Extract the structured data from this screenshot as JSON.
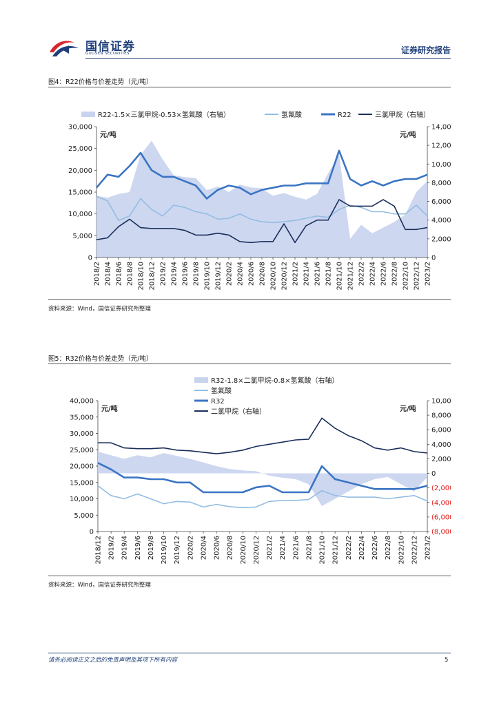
{
  "header": {
    "brand_cn": "国信证券",
    "brand_en": "GUOSEN SECURITIES",
    "report_type": "证券研究报告"
  },
  "figure4": {
    "title": "图4：R22价格与价差走势（元/吨）",
    "source": "资料来源：Wind，国信证券研究所整理"
  },
  "figure5": {
    "title": "图5：R32价格与价差走势（元/吨）",
    "source": "资料来源：Wind，国信证券研究所整理"
  },
  "footer": {
    "disclaimer": "请务必阅读正文之后的免责声明及其项下所有内容",
    "page": "5"
  },
  "colors": {
    "spread_fill": "#c8d3ee",
    "hf": "#93bde2",
    "product": "#3a74c4",
    "chloromethane": "#1a2e5a",
    "brand": "#1f3f7a",
    "logo_red": "#d8262f",
    "negative_red": "#e0201c"
  },
  "chart_data": [
    {
      "type": "line",
      "title": "R22价格与价差走势",
      "unit_left": "元/吨",
      "unit_right": "元/吨",
      "x_labels": [
        "2018/2",
        "2018/4",
        "2018/6",
        "2018/8",
        "2018/10",
        "2018/12",
        "2019/2",
        "2019/4",
        "2019/6",
        "2019/8",
        "2019/10",
        "2019/12",
        "2020/2",
        "2020/4",
        "2020/6",
        "2020/8",
        "2020/10",
        "2020/12",
        "2021/2",
        "2021/4",
        "2021/6",
        "2021/8",
        "2021/10",
        "2021/12",
        "2022/2",
        "2022/4",
        "2022/6",
        "2022/8",
        "2022/10",
        "2022/12",
        "2023/2"
      ],
      "y_left": {
        "min": 0,
        "max": 30000,
        "ticks": [
          "0",
          "5,000",
          "10,000",
          "15,000",
          "20,000",
          "25,000",
          "30,000"
        ]
      },
      "y_right": {
        "min": 0,
        "max": 14000,
        "ticks": [
          "0",
          "2,000",
          "4,000",
          "6,000",
          "8,000",
          "10,000",
          "12,000",
          "14,000"
        ]
      },
      "legend": [
        "R22-1.5×三氯甲烷-0.53×氢氟酸（右轴）",
        "氢氟酸",
        "R22",
        "三氯甲烷（右轴）"
      ],
      "series": [
        {
          "name": "R22-1.5×三氯甲烷-0.53×氢氟酸（右轴）",
          "axis": "right",
          "style": "area",
          "values": [
            6600,
            6400,
            6800,
            7000,
            11000,
            12500,
            10500,
            8800,
            8600,
            8500,
            7200,
            7600,
            7000,
            7800,
            7500,
            7400,
            6600,
            6900,
            6500,
            6200,
            6800,
            9000,
            11000,
            2000,
            3500,
            2600,
            3200,
            3800,
            4600,
            7000,
            8200
          ]
        },
        {
          "name": "氢氟酸",
          "axis": "left",
          "style": "line",
          "values": [
            14000,
            13000,
            8500,
            9500,
            13500,
            11000,
            9500,
            12000,
            11500,
            10500,
            10000,
            8800,
            9000,
            10000,
            8800,
            8200,
            8000,
            8200,
            8500,
            9000,
            9500,
            9200,
            11000,
            12000,
            11500,
            10500,
            10500,
            10000,
            10000,
            12000,
            9500
          ]
        },
        {
          "name": "R22",
          "axis": "left",
          "style": "line",
          "values": [
            16000,
            19000,
            18500,
            21000,
            24000,
            20000,
            18500,
            18500,
            17500,
            16500,
            13500,
            15500,
            16500,
            16000,
            14500,
            15500,
            16000,
            16500,
            16500,
            17000,
            17000,
            17000,
            24500,
            18000,
            16500,
            17500,
            16500,
            17500,
            18000,
            18000,
            19000
          ]
        },
        {
          "name": "三氯甲烷（右轴）",
          "axis": "right",
          "style": "line",
          "values": [
            1900,
            2100,
            3300,
            4100,
            3200,
            3100,
            3100,
            3100,
            2900,
            2400,
            2400,
            2600,
            2400,
            1700,
            1600,
            1700,
            1700,
            3600,
            1600,
            3400,
            4000,
            4000,
            6200,
            5500,
            5500,
            5500,
            6200,
            5500,
            3000,
            3000,
            3200
          ]
        }
      ]
    },
    {
      "type": "line",
      "title": "R32价格与价差走势",
      "unit_left": "元/吨",
      "unit_right": "元/吨",
      "x_labels": [
        "2018/12",
        "2019/2",
        "2019/4",
        "2019/6",
        "2019/8",
        "2019/10",
        "2019/12",
        "2020/2",
        "2020/4",
        "2020/6",
        "2020/8",
        "2020/10",
        "2020/12",
        "2021/2",
        "2021/4",
        "2021/6",
        "2021/8",
        "2021/10",
        "2021/12",
        "2022/2",
        "2022/4",
        "2022/6",
        "2022/8",
        "2022/10",
        "2022/12",
        "2023/2"
      ],
      "y_left": {
        "min": 0,
        "max": 40000,
        "ticks": [
          "0",
          "5,000",
          "10,000",
          "15,000",
          "20,000",
          "25,000",
          "30,000",
          "35,000",
          "40,000"
        ]
      },
      "y_right": {
        "min": -8000,
        "max": 10000,
        "ticks": [
          "(8,000)",
          "(6,000)",
          "(4,000)",
          "(2,000)",
          "0",
          "2,000",
          "4,000",
          "6,000",
          "8,000",
          "10,000"
        ]
      },
      "legend": [
        "R32-1.8×二氯甲烷-0.8×氢氟酸（右轴）",
        "氢氟酸",
        "R32",
        "二氯甲烷（右轴）"
      ],
      "series": [
        {
          "name": "R32-1.8×二氯甲烷-0.8×氢氟酸（右轴）",
          "axis": "right",
          "style": "area",
          "values": [
            3000,
            2500,
            2000,
            2500,
            2200,
            2800,
            2400,
            2000,
            1500,
            1000,
            600,
            400,
            300,
            -300,
            -600,
            -800,
            -1500,
            -4500,
            -3500,
            -2500,
            -1500,
            -800,
            -500,
            -1500,
            -2500,
            -500
          ]
        },
        {
          "name": "氢氟酸",
          "axis": "left",
          "style": "line",
          "values": [
            14000,
            11000,
            10000,
            11500,
            10000,
            8500,
            9200,
            9000,
            7500,
            8300,
            7600,
            7300,
            7500,
            9200,
            9500,
            9500,
            9800,
            12500,
            11000,
            10500,
            10500,
            10500,
            10000,
            10500,
            11000,
            9300
          ]
        },
        {
          "name": "R32",
          "axis": "left",
          "style": "line",
          "values": [
            21000,
            19000,
            16500,
            16500,
            16000,
            16000,
            15000,
            15000,
            12000,
            12000,
            12000,
            12000,
            13500,
            14000,
            12000,
            12000,
            12000,
            20000,
            16000,
            15000,
            14000,
            13000,
            13000,
            13000,
            13000,
            14000
          ]
        },
        {
          "name": "二氯甲烷（右轴）",
          "axis": "right",
          "style": "line",
          "values": [
            4200,
            4200,
            3500,
            3400,
            3400,
            3500,
            3200,
            3100,
            2900,
            2700,
            2900,
            3200,
            3700,
            4000,
            4300,
            4600,
            4700,
            7600,
            6200,
            5200,
            4500,
            3500,
            3200,
            3500,
            3000,
            2800
          ]
        }
      ]
    }
  ]
}
